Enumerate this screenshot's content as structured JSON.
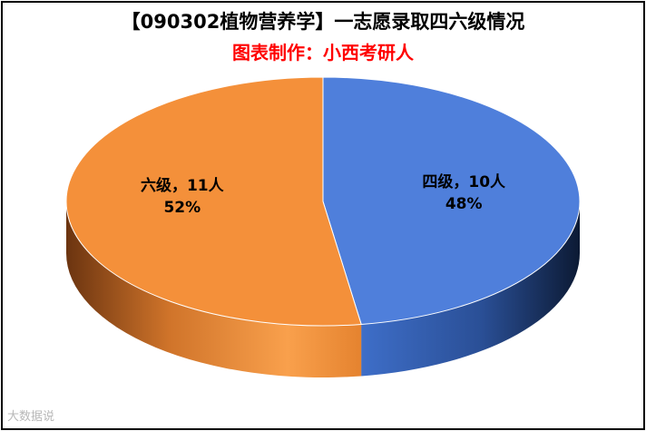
{
  "chart_data": {
    "type": "pie",
    "title": "【090302植物营养学】一志愿录取四六级情况",
    "subtitle": "图表制作：小西考研人",
    "slices": [
      {
        "category": "四级",
        "count_label": "10人",
        "label": "四级，10人",
        "value": 10,
        "percent": "48%",
        "color": "#4f7fdb"
      },
      {
        "category": "六级",
        "count_label": "11人",
        "label": "六级，11人",
        "value": 11,
        "percent": "52%",
        "color": "#f4903a"
      }
    ],
    "legend": "none"
  },
  "colors": {
    "subtitle": "#ff0000",
    "blue_dark": "#0c1a34",
    "orange_dark": "#6b3410"
  },
  "watermark": "大数据说"
}
